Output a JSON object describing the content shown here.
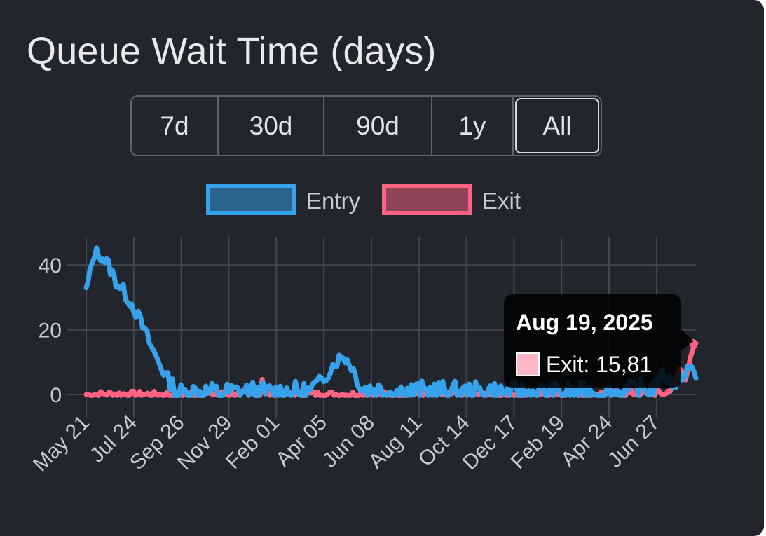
{
  "title": "Queue Wait Time (days)",
  "range_buttons": [
    {
      "label": "7d"
    },
    {
      "label": "30d"
    },
    {
      "label": "90d"
    },
    {
      "label": "1y"
    },
    {
      "label": "All"
    }
  ],
  "selected_range": "All",
  "tooltip": {
    "title": "Aug 19, 2025",
    "series": "Exit",
    "value_text": "15,81",
    "swatch_color": "#ffb6c6"
  },
  "chart_data": {
    "type": "line",
    "title": "",
    "xlabel": "",
    "ylabel": "",
    "x_range": [
      "2023-05-21",
      "2025-08-19"
    ],
    "ylim": [
      -2,
      50
    ],
    "y_ticks": [
      0,
      20,
      40
    ],
    "x_tick_labels": [
      "May 21",
      "Jul 24",
      "Sep 26",
      "Nov 29",
      "Feb 01",
      "Apr 05",
      "Jun 08",
      "Aug 11",
      "Oct 14",
      "Dec 17",
      "Feb 19",
      "Apr 24",
      "Jun 27"
    ],
    "x_tick_dates": [
      "2023-05-21",
      "2023-07-24",
      "2023-09-26",
      "2023-11-29",
      "2024-02-01",
      "2024-04-05",
      "2024-06-08",
      "2024-08-11",
      "2024-10-14",
      "2024-12-17",
      "2025-02-19",
      "2025-04-24",
      "2025-06-27"
    ],
    "grid": true,
    "legend_position": "top",
    "series": [
      {
        "name": "Entry",
        "color": "#36a2eb",
        "fill": "rgba(54,162,235,0.5)",
        "points": [
          [
            "2023-05-21",
            32
          ],
          [
            "2023-05-26",
            37
          ],
          [
            "2023-06-01",
            44
          ],
          [
            "2023-06-10",
            43
          ],
          [
            "2023-06-20",
            40
          ],
          [
            "2023-06-30",
            35
          ],
          [
            "2023-07-10",
            32
          ],
          [
            "2023-07-24",
            27
          ],
          [
            "2023-08-05",
            21
          ],
          [
            "2023-08-20",
            13
          ],
          [
            "2023-09-05",
            6
          ],
          [
            "2023-09-20",
            0
          ],
          [
            "2023-10-15",
            1
          ],
          [
            "2023-11-15",
            0.5
          ],
          [
            "2023-12-20",
            1
          ],
          [
            "2024-01-20",
            0.5
          ],
          [
            "2024-02-15",
            1
          ],
          [
            "2024-03-15",
            0.5
          ],
          [
            "2024-04-05",
            5
          ],
          [
            "2024-04-20",
            10
          ],
          [
            "2024-05-01",
            12
          ],
          [
            "2024-05-12",
            9
          ],
          [
            "2024-05-25",
            2
          ],
          [
            "2024-06-15",
            1.5
          ],
          [
            "2024-07-15",
            1
          ],
          [
            "2024-08-15",
            1
          ],
          [
            "2024-09-15",
            1
          ],
          [
            "2024-10-15",
            0.5
          ],
          [
            "2024-11-15",
            1
          ],
          [
            "2024-12-17",
            0.5
          ],
          [
            "2025-01-20",
            0.5
          ],
          [
            "2025-02-19",
            0.5
          ],
          [
            "2025-03-20",
            0.5
          ],
          [
            "2025-04-24",
            0.5
          ],
          [
            "2025-05-25",
            1
          ],
          [
            "2025-06-20",
            2
          ],
          [
            "2025-07-05",
            6
          ],
          [
            "2025-07-20",
            3
          ],
          [
            "2025-08-01",
            6
          ],
          [
            "2025-08-10",
            9
          ],
          [
            "2025-08-19",
            5
          ]
        ]
      },
      {
        "name": "Exit",
        "color": "#ff6384",
        "fill": "rgba(255,99,132,0.5)",
        "points": [
          [
            "2023-05-21",
            0
          ],
          [
            "2023-06-15",
            0.2
          ],
          [
            "2023-08-01",
            0.1
          ],
          [
            "2023-10-01",
            0
          ],
          [
            "2023-12-15",
            0.3
          ],
          [
            "2024-01-10",
            0
          ],
          [
            "2024-01-13",
            5
          ],
          [
            "2024-01-18",
            0
          ],
          [
            "2024-02-20",
            0.2
          ],
          [
            "2024-04-05",
            0.1
          ],
          [
            "2024-06-08",
            0.1
          ],
          [
            "2024-08-11",
            0
          ],
          [
            "2024-10-14",
            0.2
          ],
          [
            "2024-12-17",
            0.1
          ],
          [
            "2025-02-19",
            0.2
          ],
          [
            "2025-04-24",
            0.3
          ],
          [
            "2025-06-27",
            0.4
          ],
          [
            "2025-07-10",
            0.2
          ],
          [
            "2025-07-20",
            3
          ],
          [
            "2025-07-28",
            8
          ],
          [
            "2025-08-05",
            5
          ],
          [
            "2025-08-12",
            12
          ],
          [
            "2025-08-19",
            15.81
          ]
        ]
      }
    ]
  }
}
